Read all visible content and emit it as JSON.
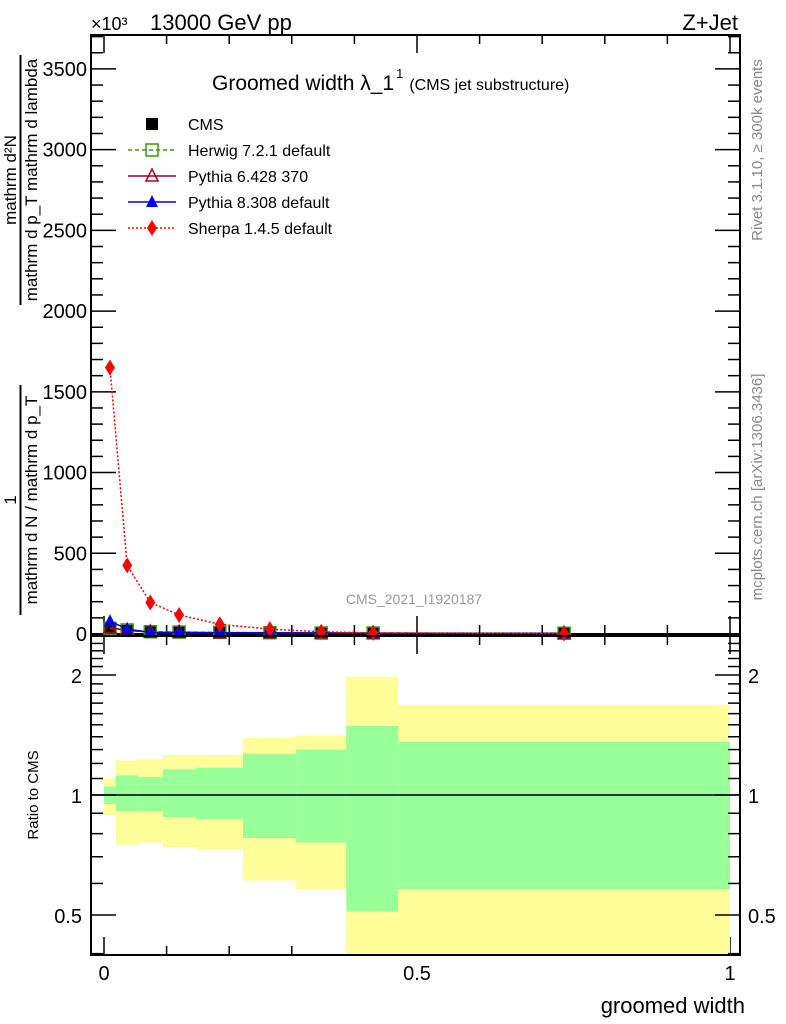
{
  "header": {
    "energy": "13000 GeV pp",
    "process": "Z+Jet",
    "multiplier": "×10³"
  },
  "side_text": {
    "rivet": "Rivet 3.1.10, ≥ 300k events",
    "mcplots": "mcplots.cern.ch [arXiv:1306.3436]"
  },
  "watermark": "CMS_2021_I1920187",
  "chart_data": [
    {
      "type": "line",
      "title": "Groomed width λ_1",
      "title_sup": "1",
      "subtitle": "(CMS jet substructure)",
      "ylabel_num1": "1",
      "ylabel_den1": "mathrm d N / mathrm d p_T",
      "ylabel_num2": "mathrm d²N",
      "ylabel_den2": "mathrm d p_T mathrm d lambda",
      "xlim": [
        0,
        1
      ],
      "ylim": [
        0,
        3710
      ],
      "yticks": [
        0,
        500,
        1000,
        1500,
        2000,
        2500,
        3000,
        3500
      ],
      "ytick_labels": [
        "0",
        "500",
        "1000",
        "1500",
        "2000",
        "2500",
        "3000",
        "3500"
      ],
      "legend_position": "top-left",
      "x": [
        0.0095,
        0.037,
        0.074,
        0.12,
        0.185,
        0.265,
        0.347,
        0.43,
        0.735
      ],
      "bin_edges": [
        0,
        0.019,
        0.054,
        0.094,
        0.147,
        0.222,
        0.307,
        0.387,
        0.47,
        1.0
      ],
      "series": [
        {
          "name": "CMS",
          "color": "#000000",
          "marker": "square",
          "values": [
            30,
            20,
            12,
            12,
            10,
            8,
            6,
            6,
            5
          ]
        },
        {
          "name": "Herwig 7.2.1 default",
          "color": "#3a9a00",
          "marker": "open-square",
          "dash": "4,3",
          "values": [
            35,
            25,
            14,
            12,
            10,
            8,
            6,
            6,
            5
          ]
        },
        {
          "name": "Pythia 6.428 370",
          "color": "#a00020",
          "marker": "open-triangle",
          "dash": "",
          "values": [
            40,
            22,
            12,
            10,
            8,
            7,
            6,
            5,
            4
          ]
        },
        {
          "name": "Pythia 8.308 default",
          "color": "#0000ee",
          "marker": "triangle",
          "dash": "",
          "values": [
            80,
            30,
            10,
            10,
            8,
            7,
            6,
            5,
            4
          ]
        },
        {
          "name": "Sherpa 1.4.5 default",
          "color": "#ff0000",
          "marker": "diamond",
          "dash": "2,2",
          "values": [
            1650,
            425,
            195,
            118,
            60,
            30,
            14,
            7,
            3
          ]
        }
      ]
    },
    {
      "type": "area",
      "ylabel": "Ratio to CMS",
      "xlabel": "groomed width",
      "yscale": "log",
      "ylim": [
        0.4,
        2.5
      ],
      "yticks": [
        0.5,
        1,
        2
      ],
      "ytick_labels": [
        "0.5",
        "1",
        "2"
      ],
      "xticks": [
        0,
        0.5,
        1
      ],
      "xtick_labels": [
        "0",
        "0.5",
        "1"
      ],
      "bin_edges": [
        0,
        0.019,
        0.054,
        0.094,
        0.147,
        0.222,
        0.307,
        0.387,
        0.47,
        1.0
      ],
      "band_outer": {
        "color": "#ffff99",
        "upper": [
          1.1,
          1.22,
          1.23,
          1.26,
          1.26,
          1.39,
          1.41,
          1.98,
          1.68
        ],
        "lower": [
          0.89,
          0.75,
          0.76,
          0.74,
          0.73,
          0.61,
          0.58,
          0.35,
          0.35
        ]
      },
      "band_inner": {
        "color": "#99ff99",
        "upper": [
          1.05,
          1.12,
          1.11,
          1.16,
          1.17,
          1.27,
          1.3,
          1.49,
          1.36
        ],
        "lower": [
          0.95,
          0.91,
          0.91,
          0.88,
          0.87,
          0.78,
          0.76,
          0.51,
          0.58
        ]
      },
      "reference": 1
    }
  ]
}
